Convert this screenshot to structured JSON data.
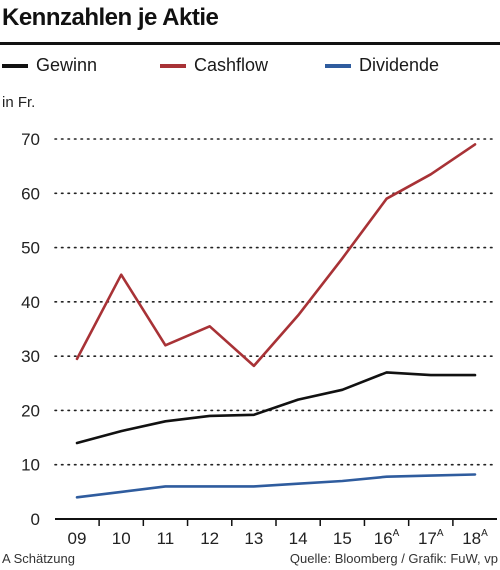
{
  "header": {
    "title": "Kennzahlen je Aktie"
  },
  "footer": {
    "note": "A Schätzung",
    "source": "Quelle: Bloomberg / Grafik: FuW, vp"
  },
  "chart_data": {
    "type": "line",
    "title": "Kennzahlen je Aktie",
    "ylabel": "in Fr.",
    "xlabel": "",
    "ylim": [
      0,
      70
    ],
    "yticks": [
      0,
      10,
      20,
      30,
      40,
      50,
      60,
      70
    ],
    "grid": true,
    "legend_position": "top",
    "categories": [
      "09",
      "10",
      "11",
      "12",
      "13",
      "14",
      "15",
      "16",
      "17",
      "18"
    ],
    "category_superscripts": [
      "",
      "",
      "",
      "",
      "",
      "",
      "",
      "A",
      "A",
      "A"
    ],
    "series": [
      {
        "name": "Gewinn",
        "color": "#111111",
        "values": [
          14.0,
          16.2,
          18.0,
          19.0,
          19.2,
          22.0,
          23.8,
          27.0,
          26.5,
          26.5
        ]
      },
      {
        "name": "Cashflow",
        "color": "#a83236",
        "values": [
          29.5,
          45.0,
          32.0,
          35.5,
          28.2,
          37.5,
          48.0,
          59.0,
          63.5,
          69.0
        ]
      },
      {
        "name": "Dividende",
        "color": "#2f5c9e",
        "values": [
          4.0,
          5.0,
          6.0,
          6.0,
          6.0,
          6.5,
          7.0,
          7.8,
          8.0,
          8.2
        ]
      }
    ]
  }
}
